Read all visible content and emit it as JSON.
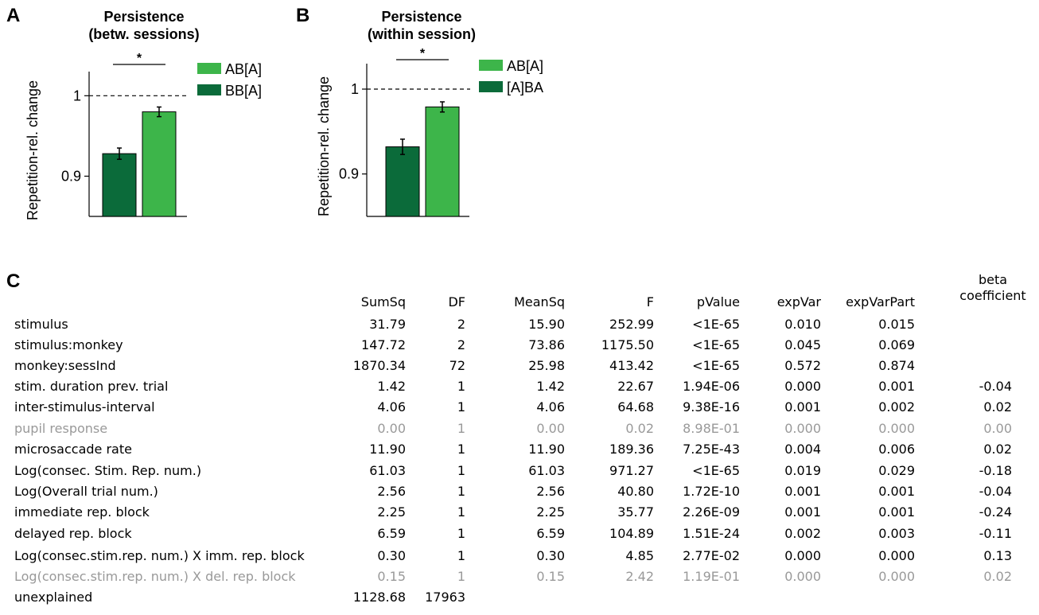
{
  "panels": {
    "a": {
      "letter": "A"
    },
    "b": {
      "letter": "B"
    },
    "c": {
      "letter": "C"
    }
  },
  "colors": {
    "light_green": "#3db54a",
    "dark_green": "#0b6b3a",
    "grey_text": "#999999"
  },
  "chart_data": [
    {
      "type": "bar",
      "title": "Persistence\n(betw. sessions)",
      "title_lines": [
        "Persistence",
        "(betw. sessions)"
      ],
      "ylabel": "Repetition-rel. change",
      "ylim": [
        0.85,
        1.03
      ],
      "yticks": [
        0.9,
        1
      ],
      "ytick_labels": [
        "0.9",
        "1"
      ],
      "reference_line": 1,
      "categories": [
        "BB[A]",
        "AB[A]"
      ],
      "values": [
        0.928,
        0.98
      ],
      "errors": [
        0.007,
        0.006
      ],
      "bar_colors": [
        "#0b6b3a",
        "#3db54a"
      ],
      "significance": "*",
      "legend": [
        {
          "label": "AB[A]",
          "color": "#3db54a"
        },
        {
          "label": "BB[A]",
          "color": "#0b6b3a"
        }
      ],
      "legend_position": "top-right"
    },
    {
      "type": "bar",
      "title": "Persistence\n(within session)",
      "title_lines": [
        "Persistence",
        "(within session)"
      ],
      "ylabel": "Repetition-rel. change",
      "ylim": [
        0.85,
        1.03
      ],
      "yticks": [
        0.9,
        1
      ],
      "ytick_labels": [
        "0.9",
        "1"
      ],
      "reference_line": 1,
      "categories": [
        "[A]BA",
        "AB[A]"
      ],
      "values": [
        0.932,
        0.979
      ],
      "errors": [
        0.009,
        0.006
      ],
      "bar_colors": [
        "#0b6b3a",
        "#3db54a"
      ],
      "significance": "*",
      "legend": [
        {
          "label": "AB[A]",
          "color": "#3db54a"
        },
        {
          "label": "[A]BA",
          "color": "#0b6b3a"
        }
      ],
      "legend_position": "top-right"
    },
    {
      "type": "table",
      "columns": [
        "",
        "SumSq",
        "DF",
        "MeanSq",
        "F",
        "pValue",
        "expVar",
        "expVarPart",
        "beta coefficient"
      ],
      "rows": [
        {
          "cells": [
            "stimulus",
            "31.79",
            "2",
            "15.90",
            "252.99",
            "<1E-65",
            "0.010",
            "0.015",
            ""
          ],
          "muted": false
        },
        {
          "cells": [
            "stimulus:monkey",
            "147.72",
            "2",
            "73.86",
            "1175.50",
            "<1E-65",
            "0.045",
            "0.069",
            ""
          ],
          "muted": false
        },
        {
          "cells": [
            "monkey:sessInd",
            "1870.34",
            "72",
            "25.98",
            "413.42",
            "<1E-65",
            "0.572",
            "0.874",
            ""
          ],
          "muted": false
        },
        {
          "cells": [
            "stim. duration prev. trial",
            "1.42",
            "1",
            "1.42",
            "22.67",
            "1.94E-06",
            "0.000",
            "0.001",
            "-0.04"
          ],
          "muted": false
        },
        {
          "cells": [
            "inter-stimulus-interval",
            "4.06",
            "1",
            "4.06",
            "64.68",
            "9.38E-16",
            "0.001",
            "0.002",
            "0.02"
          ],
          "muted": false
        },
        {
          "cells": [
            "pupil response",
            "0.00",
            "1",
            "0.00",
            "0.02",
            "8.98E-01",
            "0.000",
            "0.000",
            "0.00"
          ],
          "muted": true
        },
        {
          "cells": [
            "microsaccade rate",
            "11.90",
            "1",
            "11.90",
            "189.36",
            "7.25E-43",
            "0.004",
            "0.006",
            "0.02"
          ],
          "muted": false
        },
        {
          "cells": [
            "Log(consec. Stim. Rep. num.)",
            "61.03",
            "1",
            "61.03",
            "971.27",
            "<1E-65",
            "0.019",
            "0.029",
            "-0.18"
          ],
          "muted": false
        },
        {
          "cells": [
            "Log(Overall trial num.)",
            "2.56",
            "1",
            "2.56",
            "40.80",
            "1.72E-10",
            "0.001",
            "0.001",
            "-0.04"
          ],
          "muted": false
        },
        {
          "cells": [
            "immediate rep. block",
            "2.25",
            "1",
            "2.25",
            "35.77",
            "2.26E-09",
            "0.001",
            "0.001",
            "-0.24"
          ],
          "muted": false
        },
        {
          "cells": [
            "delayed rep. block",
            "6.59",
            "1",
            "6.59",
            "104.89",
            "1.51E-24",
            "0.002",
            "0.003",
            "-0.11"
          ],
          "muted": false
        },
        {
          "cells": [
            "Log(consec.stim.rep. num.) X imm. rep. block",
            "0.30",
            "1",
            "0.30",
            "4.85",
            "2.77E-02",
            "0.000",
            "0.000",
            "0.13"
          ],
          "muted": false
        },
        {
          "cells": [
            "Log(consec.stim.rep. num.) X del. rep. block",
            "0.15",
            "1",
            "0.15",
            "2.42",
            "1.19E-01",
            "0.000",
            "0.000",
            "0.02"
          ],
          "muted": true
        },
        {
          "cells": [
            "unexplained",
            "1128.68",
            "17963",
            "",
            "",
            "",
            "",
            "",
            ""
          ],
          "muted": false
        }
      ]
    }
  ]
}
